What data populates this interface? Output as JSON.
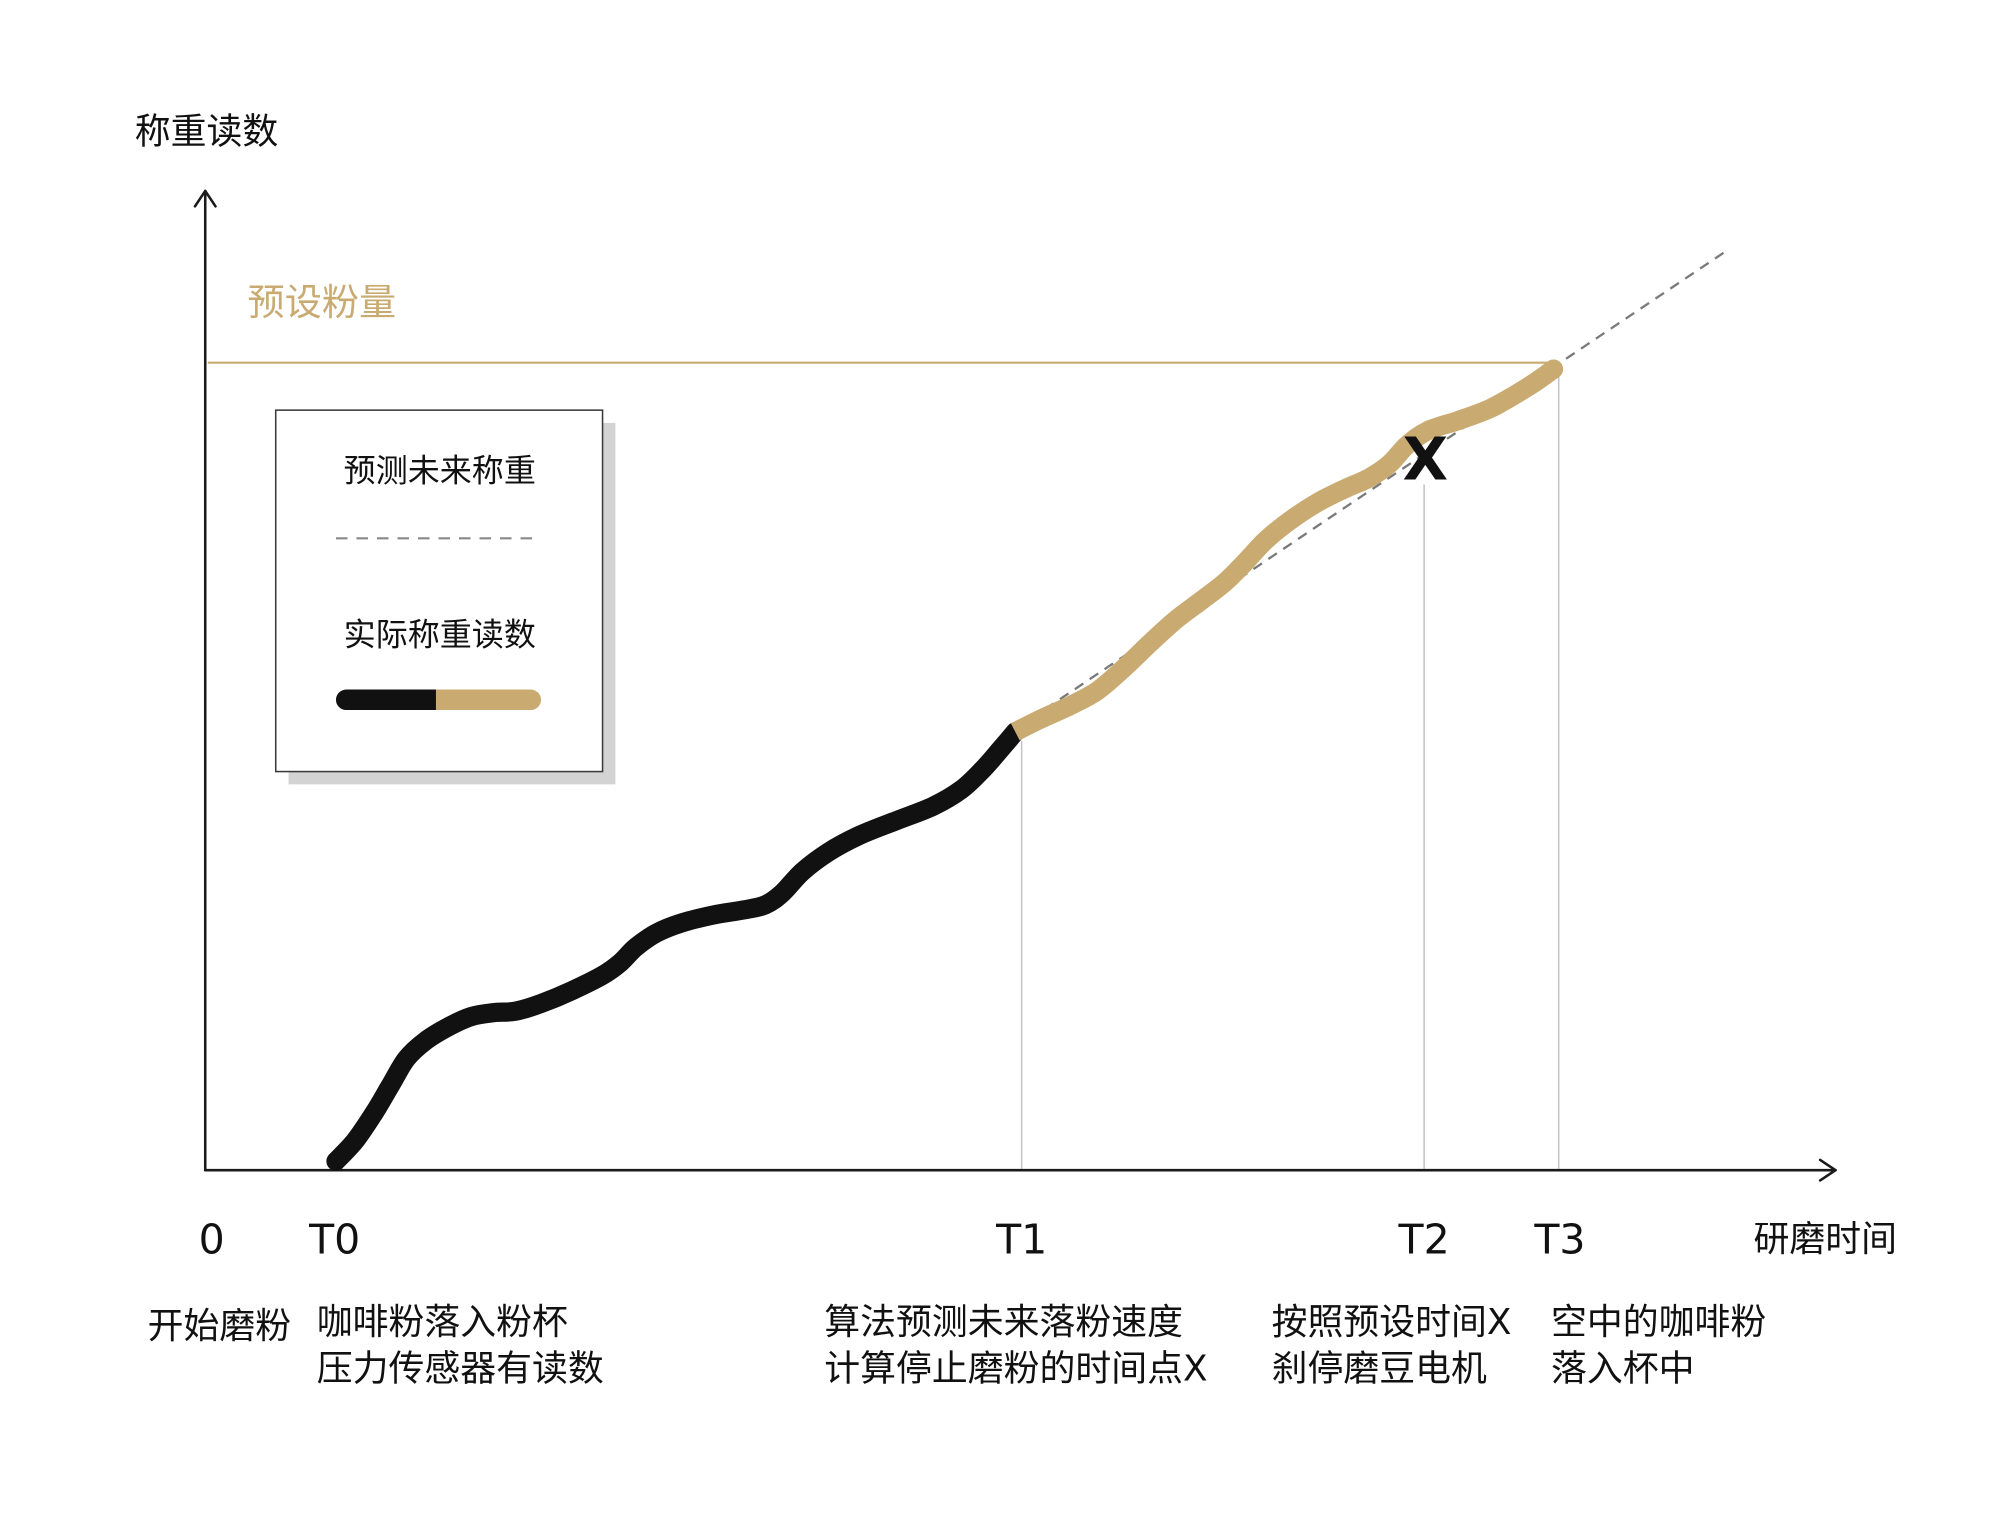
{
  "y_axis": {
    "label": "称重读数"
  },
  "x_axis": {
    "label": "研磨时间",
    "ticks": [
      "0",
      "T0",
      "T1",
      "T2",
      "T3"
    ]
  },
  "preset_dose": {
    "label": "预设粉量"
  },
  "legend": {
    "items": [
      {
        "label": "预测未来称重"
      },
      {
        "label": "实际称重读数"
      }
    ]
  },
  "marker": {
    "label": "X"
  },
  "captions": [
    {
      "lines": [
        "开始磨粉"
      ]
    },
    {
      "lines": [
        "咖啡粉落入粉杯",
        "压力传感器有读数"
      ]
    },
    {
      "lines": [
        "算法预测未来落粉速度",
        "计算停止磨粉的时间点X"
      ]
    },
    {
      "lines": [
        "按照预设时间X",
        "刹停磨豆电机"
      ]
    },
    {
      "lines": [
        "空中的咖啡粉",
        "落入杯中"
      ]
    }
  ],
  "colors": {
    "ink": "#111111",
    "gold": "#c9ab72",
    "prediction": "#7a7a7a",
    "guide": "#c4c4c4",
    "legend_shadow": "#d3d3d3"
  }
}
